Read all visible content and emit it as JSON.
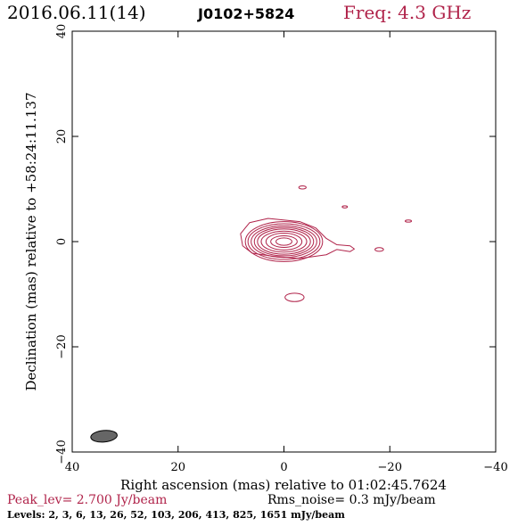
{
  "header": {
    "date": "2016.06.11(14)",
    "source": "J0102+5824",
    "freq": "Freq: 4.3 GHz"
  },
  "chart_data": {
    "type": "contour",
    "xlabel": "Right ascension (mas) relative to 01:02:45.7624",
    "ylabel": "Declination (mas) relative to +58:24:11.137",
    "xlim": [
      40,
      -40
    ],
    "ylim": [
      -40,
      40
    ],
    "x_ticks": [
      40,
      20,
      0,
      -20,
      -40
    ],
    "y_ticks": [
      -40,
      -20,
      0,
      20,
      40
    ],
    "x_tick_labels": [
      "40",
      "20",
      "0",
      "−20",
      "−40"
    ],
    "y_tick_labels": [
      "−40",
      "−20",
      "0",
      "20",
      "40"
    ],
    "contour_color": "#b0234a",
    "beam": {
      "x": 34,
      "y": -37,
      "major": 5,
      "minor": 2.2,
      "angle_deg": 5,
      "color": "#666666"
    },
    "core_center": [
      0,
      0
    ],
    "core_rings": [
      {
        "rx": 7.3,
        "ry": 3.8
      },
      {
        "rx": 6.8,
        "ry": 3.4
      },
      {
        "rx": 6.2,
        "ry": 3.0
      },
      {
        "rx": 5.6,
        "ry": 2.7
      },
      {
        "rx": 5.0,
        "ry": 2.4
      },
      {
        "rx": 4.3,
        "ry": 2.0
      },
      {
        "rx": 3.4,
        "ry": 1.6
      },
      {
        "rx": 2.5,
        "ry": 1.1
      },
      {
        "rx": 1.5,
        "ry": 0.7
      }
    ],
    "outer_contour": [
      [
        -3,
        3.8
      ],
      [
        3,
        4.4
      ],
      [
        6.5,
        3.6
      ],
      [
        8.2,
        1.5
      ],
      [
        7.8,
        -0.8
      ],
      [
        6,
        -2.2
      ],
      [
        2,
        -2.8
      ],
      [
        -3,
        -3.2
      ],
      [
        -8,
        -2.5
      ],
      [
        -10,
        -1.5
      ],
      [
        -12.5,
        -1.9
      ],
      [
        -13.3,
        -1.4
      ],
      [
        -12.5,
        -0.8
      ],
      [
        -10,
        -0.6
      ],
      [
        -8,
        0.6
      ],
      [
        -6,
        2.6
      ]
    ],
    "blobs": [
      {
        "x": -3.5,
        "y": 10.3,
        "rx": 0.7,
        "ry": 0.3
      },
      {
        "x": -11.5,
        "y": 6.6,
        "rx": 0.5,
        "ry": 0.2
      },
      {
        "x": -23.5,
        "y": 3.9,
        "rx": 0.6,
        "ry": 0.2
      },
      {
        "x": -18,
        "y": -1.5,
        "rx": 0.8,
        "ry": 0.35
      },
      {
        "x": -2,
        "y": -10.6,
        "rx": 1.8,
        "ry": 0.8
      }
    ],
    "peak": "Peak_lev=  2.700 Jy/beam",
    "rms": "Rms_noise=  0.3 mJy/beam",
    "levels": "Levels:   2,   3,   6,   13,   26,   52,  103,  206,  413,  825,  1651 mJy/beam"
  }
}
